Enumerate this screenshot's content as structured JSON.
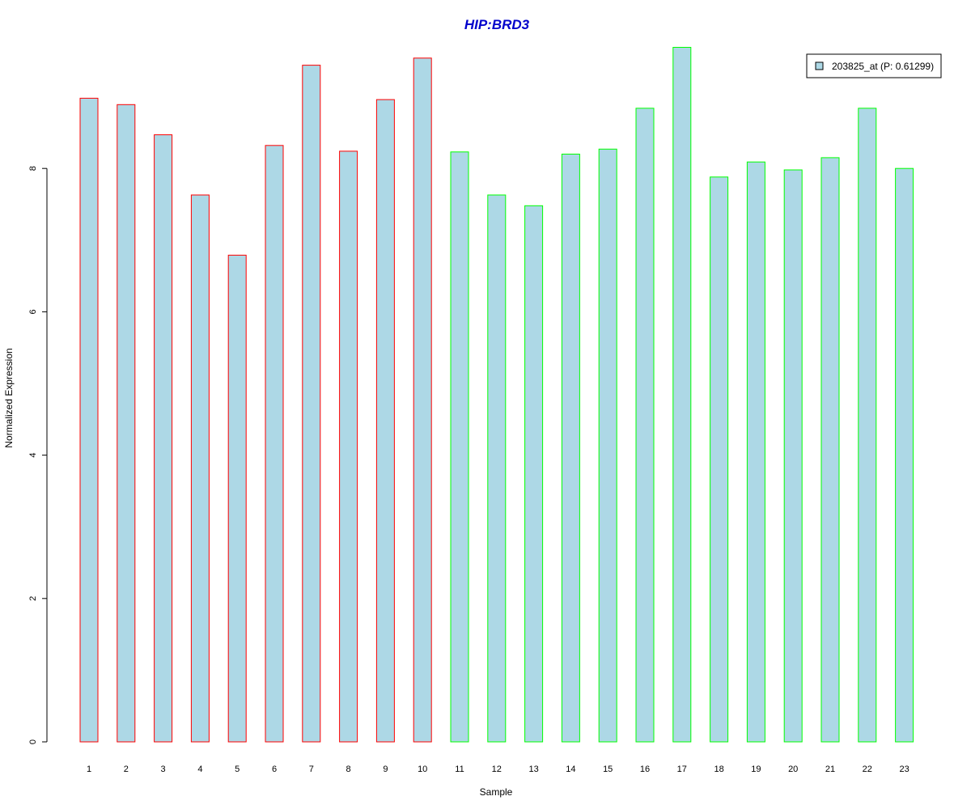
{
  "chart_data": {
    "type": "bar",
    "title": "HIP:BRD3",
    "xlabel": "Sample",
    "ylabel": "Normalized Expression",
    "categories": [
      "1",
      "2",
      "3",
      "4",
      "5",
      "6",
      "7",
      "8",
      "9",
      "10",
      "11",
      "12",
      "13",
      "14",
      "15",
      "16",
      "17",
      "18",
      "19",
      "20",
      "21",
      "22",
      "23"
    ],
    "series": [
      {
        "name": "203825_at (P: 0.61299)",
        "values": [
          8.98,
          8.89,
          8.47,
          7.63,
          6.79,
          8.32,
          9.44,
          8.24,
          8.96,
          9.54,
          8.23,
          7.63,
          7.48,
          8.2,
          8.27,
          8.84,
          9.69,
          7.88,
          8.09,
          7.98,
          8.15,
          8.84,
          8.0
        ]
      }
    ],
    "ylim": [
      0,
      10
    ],
    "yticks": [
      0,
      2,
      4,
      6,
      8
    ],
    "legend_position": "top-right",
    "grid": false,
    "colors": {
      "title": "#0000CC",
      "bar_fill": "#ADD8E6",
      "group_borders": [
        "#FF0000",
        "#00FF00"
      ],
      "axis": "#000000"
    },
    "groups": [
      {
        "border": "#FF0000",
        "samples": [
          "1",
          "2",
          "3",
          "4",
          "5",
          "6",
          "7",
          "8",
          "9",
          "10"
        ]
      },
      {
        "border": "#00FF00",
        "samples": [
          "11",
          "12",
          "13",
          "14",
          "15",
          "16",
          "17",
          "18",
          "19",
          "20",
          "21",
          "22",
          "23"
        ]
      }
    ]
  }
}
